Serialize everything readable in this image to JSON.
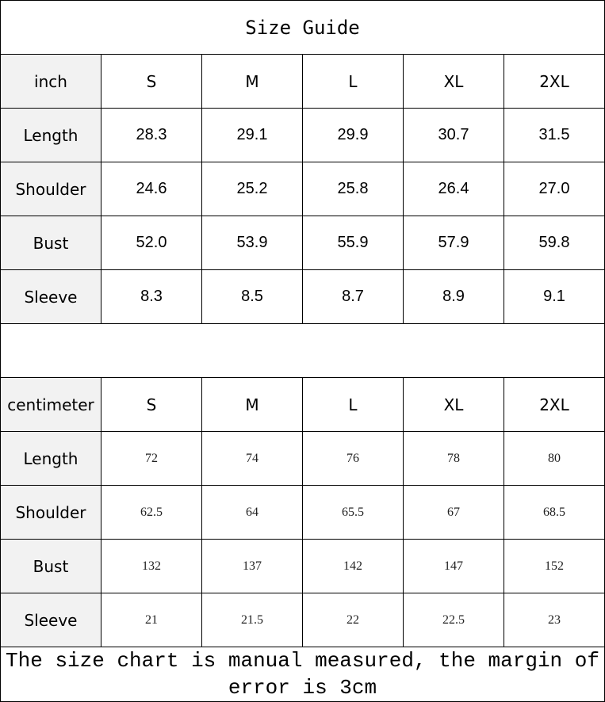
{
  "title": "Size Guide",
  "inch": {
    "unit_label": "inch",
    "sizes": [
      "S",
      "M",
      "L",
      "XL",
      "2XL"
    ],
    "rows": [
      {
        "label": "Length",
        "values": [
          "28.3",
          "29.1",
          "29.9",
          "30.7",
          "31.5"
        ]
      },
      {
        "label": "Shoulder",
        "values": [
          "24.6",
          "25.2",
          "25.8",
          "26.4",
          "27.0"
        ]
      },
      {
        "label": "Bust",
        "values": [
          "52.0",
          "53.9",
          "55.9",
          "57.9",
          "59.8"
        ]
      },
      {
        "label": "Sleeve",
        "values": [
          "8.3",
          "8.5",
          "8.7",
          "8.9",
          "9.1"
        ]
      }
    ]
  },
  "cm": {
    "unit_label": "centimeter",
    "sizes": [
      "S",
      "M",
      "L",
      "XL",
      "2XL"
    ],
    "rows": [
      {
        "label": "Length",
        "values": [
          "72",
          "74",
          "76",
          "78",
          "80"
        ]
      },
      {
        "label": "Shoulder",
        "values": [
          "62.5",
          "64",
          "65.5",
          "67",
          "68.5"
        ]
      },
      {
        "label": "Bust",
        "values": [
          "132",
          "137",
          "142",
          "147",
          "152"
        ]
      },
      {
        "label": "Sleeve",
        "values": [
          "21",
          "21.5",
          "22",
          "22.5",
          "23"
        ]
      }
    ]
  },
  "footer_note": "The size chart is manual measured, the margin of error is 3cm"
}
